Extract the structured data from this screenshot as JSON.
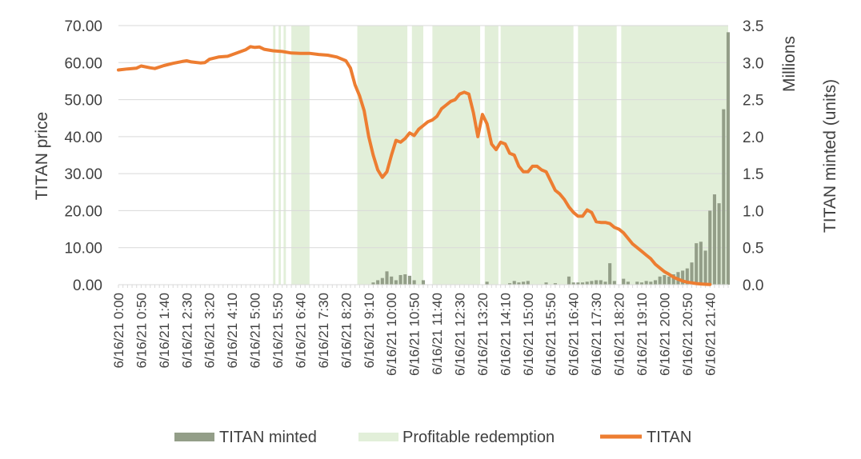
{
  "chart_data": {
    "type": "line",
    "ylabel": "TITAN price",
    "y2label": "TITAN minted (units)",
    "y2_unit": "Millions",
    "ylim": [
      0,
      70
    ],
    "y2lim": [
      0,
      3.5
    ],
    "yticks": [
      "0.00",
      "10.00",
      "20.00",
      "30.00",
      "40.00",
      "50.00",
      "60.00",
      "70.00"
    ],
    "y2ticks": [
      "0.0",
      "0.5",
      "1.0",
      "1.5",
      "2.0",
      "2.5",
      "3.0",
      "3.5"
    ],
    "x_range_minutes": [
      0,
      1340
    ],
    "x_step_minutes": 10,
    "xticks": [
      {
        "t": 0,
        "label": "6/16/21 0:00"
      },
      {
        "t": 50,
        "label": "6/16/21 0:50"
      },
      {
        "t": 100,
        "label": "6/16/21 1:40"
      },
      {
        "t": 150,
        "label": "6/16/21 2:30"
      },
      {
        "t": 200,
        "label": "6/16/21 3:20"
      },
      {
        "t": 250,
        "label": "6/16/21 4:10"
      },
      {
        "t": 300,
        "label": "6/16/21 5:00"
      },
      {
        "t": 350,
        "label": "6/16/21 5:50"
      },
      {
        "t": 400,
        "label": "6/16/21 6:40"
      },
      {
        "t": 450,
        "label": "6/16/21 7:30"
      },
      {
        "t": 500,
        "label": "6/16/21 8:20"
      },
      {
        "t": 550,
        "label": "6/16/21 9:10"
      },
      {
        "t": 600,
        "label": "6/16/21 10:00"
      },
      {
        "t": 650,
        "label": "6/16/21 10:50"
      },
      {
        "t": 700,
        "label": "6/16/21 11:40"
      },
      {
        "t": 750,
        "label": "6/16/21 12:30"
      },
      {
        "t": 800,
        "label": "6/16/21 13:20"
      },
      {
        "t": 850,
        "label": "6/16/21 14:10"
      },
      {
        "t": 900,
        "label": "6/16/21 15:00"
      },
      {
        "t": 950,
        "label": "6/16/21 15:50"
      },
      {
        "t": 1000,
        "label": "6/16/21 16:40"
      },
      {
        "t": 1050,
        "label": "6/16/21 17:30"
      },
      {
        "t": 1100,
        "label": "6/16/21 18:20"
      },
      {
        "t": 1150,
        "label": "6/16/21 19:10"
      },
      {
        "t": 1200,
        "label": "6/16/21 20:00"
      },
      {
        "t": 1250,
        "label": "6/16/21 20:50"
      },
      {
        "t": 1300,
        "label": "6/16/21 21:40"
      }
    ],
    "legend_position": "bottom",
    "grid": true,
    "legend": [
      {
        "label": "TITAN minted",
        "kind": "bar",
        "color": "#939e88"
      },
      {
        "label": "Profitable redemption",
        "kind": "band",
        "color": "#e2efd9"
      },
      {
        "label": "TITAN",
        "kind": "line",
        "color": "#ed7d31"
      }
    ],
    "profitable_redemption_intervals": [
      [
        340,
        345
      ],
      [
        352,
        357
      ],
      [
        363,
        368
      ],
      [
        380,
        420
      ],
      [
        525,
        635
      ],
      [
        645,
        670
      ],
      [
        690,
        795
      ],
      [
        805,
        835
      ],
      [
        840,
        1000
      ],
      [
        1010,
        1095
      ],
      [
        1105,
        1340
      ]
    ],
    "price": [
      [
        0,
        58.0
      ],
      [
        20,
        58.3
      ],
      [
        40,
        58.5
      ],
      [
        50,
        59.1
      ],
      [
        70,
        58.6
      ],
      [
        80,
        58.4
      ],
      [
        100,
        59.2
      ],
      [
        120,
        59.8
      ],
      [
        140,
        60.3
      ],
      [
        150,
        60.5
      ],
      [
        160,
        60.2
      ],
      [
        180,
        59.9
      ],
      [
        190,
        60.0
      ],
      [
        200,
        60.9
      ],
      [
        220,
        61.5
      ],
      [
        240,
        61.7
      ],
      [
        260,
        62.6
      ],
      [
        280,
        63.5
      ],
      [
        290,
        64.3
      ],
      [
        300,
        64.1
      ],
      [
        310,
        64.2
      ],
      [
        320,
        63.6
      ],
      [
        340,
        63.2
      ],
      [
        360,
        63.0
      ],
      [
        380,
        62.6
      ],
      [
        400,
        62.5
      ],
      [
        420,
        62.5
      ],
      [
        440,
        62.2
      ],
      [
        460,
        62.0
      ],
      [
        480,
        61.5
      ],
      [
        500,
        60.5
      ],
      [
        510,
        58.5
      ],
      [
        520,
        54.0
      ],
      [
        530,
        51.0
      ],
      [
        540,
        47.0
      ],
      [
        550,
        40.0
      ],
      [
        560,
        35.0
      ],
      [
        570,
        31.0
      ],
      [
        580,
        29.0
      ],
      [
        590,
        30.5
      ],
      [
        600,
        35.0
      ],
      [
        610,
        39.0
      ],
      [
        620,
        38.5
      ],
      [
        630,
        39.5
      ],
      [
        640,
        41.0
      ],
      [
        650,
        40.3
      ],
      [
        660,
        42.0
      ],
      [
        670,
        43.0
      ],
      [
        680,
        44.0
      ],
      [
        690,
        44.5
      ],
      [
        700,
        45.5
      ],
      [
        710,
        47.5
      ],
      [
        720,
        48.5
      ],
      [
        730,
        49.5
      ],
      [
        740,
        50.0
      ],
      [
        750,
        51.5
      ],
      [
        760,
        52.0
      ],
      [
        770,
        51.5
      ],
      [
        780,
        46.5
      ],
      [
        790,
        40.0
      ],
      [
        800,
        46.0
      ],
      [
        810,
        43.5
      ],
      [
        820,
        38.0
      ],
      [
        830,
        36.5
      ],
      [
        840,
        38.5
      ],
      [
        850,
        38.0
      ],
      [
        860,
        35.5
      ],
      [
        870,
        35.0
      ],
      [
        880,
        32.0
      ],
      [
        890,
        30.5
      ],
      [
        900,
        30.5
      ],
      [
        910,
        32.0
      ],
      [
        920,
        32.0
      ],
      [
        930,
        31.0
      ],
      [
        940,
        30.5
      ],
      [
        950,
        28.0
      ],
      [
        960,
        25.5
      ],
      [
        970,
        24.5
      ],
      [
        980,
        23.0
      ],
      [
        990,
        21.0
      ],
      [
        1000,
        19.5
      ],
      [
        1010,
        18.5
      ],
      [
        1020,
        18.5
      ],
      [
        1030,
        20.2
      ],
      [
        1040,
        19.5
      ],
      [
        1050,
        17.0
      ],
      [
        1060,
        16.8
      ],
      [
        1070,
        16.8
      ],
      [
        1080,
        16.5
      ],
      [
        1090,
        15.5
      ],
      [
        1100,
        15.0
      ],
      [
        1110,
        14.0
      ],
      [
        1120,
        12.5
      ],
      [
        1130,
        11.0
      ],
      [
        1140,
        10.0
      ],
      [
        1150,
        9.0
      ],
      [
        1160,
        8.0
      ],
      [
        1170,
        7.0
      ],
      [
        1180,
        5.5
      ],
      [
        1190,
        4.5
      ],
      [
        1200,
        3.5
      ],
      [
        1210,
        2.8
      ],
      [
        1220,
        2.0
      ],
      [
        1230,
        1.5
      ],
      [
        1240,
        1.0
      ],
      [
        1250,
        0.7
      ],
      [
        1260,
        0.5
      ],
      [
        1270,
        0.3
      ],
      [
        1280,
        0.2
      ],
      [
        1290,
        0.1
      ],
      [
        1300,
        0.05
      ]
    ],
    "minted_millions": [
      [
        560,
        0.03
      ],
      [
        570,
        0.06
      ],
      [
        580,
        0.09
      ],
      [
        590,
        0.18
      ],
      [
        600,
        0.11
      ],
      [
        610,
        0.06
      ],
      [
        620,
        0.13
      ],
      [
        630,
        0.14
      ],
      [
        640,
        0.12
      ],
      [
        650,
        0.06
      ],
      [
        670,
        0.06
      ],
      [
        810,
        0.04
      ],
      [
        860,
        0.02
      ],
      [
        870,
        0.05
      ],
      [
        880,
        0.03
      ],
      [
        890,
        0.04
      ],
      [
        900,
        0.05
      ],
      [
        940,
        0.03
      ],
      [
        960,
        0.02
      ],
      [
        990,
        0.11
      ],
      [
        1000,
        0.03
      ],
      [
        1010,
        0.03
      ],
      [
        1020,
        0.03
      ],
      [
        1030,
        0.04
      ],
      [
        1040,
        0.05
      ],
      [
        1050,
        0.06
      ],
      [
        1060,
        0.06
      ],
      [
        1070,
        0.04
      ],
      [
        1080,
        0.29
      ],
      [
        1090,
        0.05
      ],
      [
        1110,
        0.08
      ],
      [
        1120,
        0.04
      ],
      [
        1140,
        0.04
      ],
      [
        1150,
        0.03
      ],
      [
        1160,
        0.05
      ],
      [
        1170,
        0.04
      ],
      [
        1180,
        0.06
      ],
      [
        1190,
        0.11
      ],
      [
        1200,
        0.13
      ],
      [
        1210,
        0.11
      ],
      [
        1220,
        0.14
      ],
      [
        1230,
        0.17
      ],
      [
        1240,
        0.19
      ],
      [
        1250,
        0.22
      ],
      [
        1260,
        0.3
      ],
      [
        1270,
        0.56
      ],
      [
        1280,
        0.58
      ],
      [
        1290,
        0.46
      ],
      [
        1300,
        1.0
      ],
      [
        1310,
        1.22
      ],
      [
        1320,
        1.1
      ],
      [
        1330,
        2.37
      ],
      [
        1340,
        3.41
      ]
    ]
  }
}
